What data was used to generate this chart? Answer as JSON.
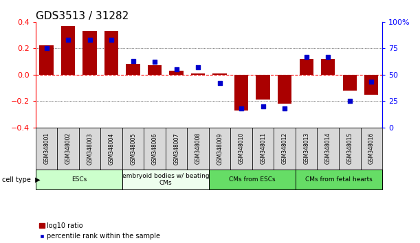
{
  "title": "GDS3513 / 31282",
  "samples": [
    "GSM348001",
    "GSM348002",
    "GSM348003",
    "GSM348004",
    "GSM348005",
    "GSM348006",
    "GSM348007",
    "GSM348008",
    "GSM348009",
    "GSM348010",
    "GSM348011",
    "GSM348012",
    "GSM348013",
    "GSM348014",
    "GSM348015",
    "GSM348016"
  ],
  "log10_ratio": [
    0.22,
    0.37,
    0.33,
    0.33,
    0.08,
    0.07,
    0.03,
    0.01,
    0.01,
    -0.27,
    -0.19,
    -0.22,
    0.12,
    0.12,
    -0.12,
    -0.15
  ],
  "percentile_rank": [
    75,
    83,
    83,
    83,
    63,
    62,
    55,
    57,
    42,
    18,
    20,
    18,
    67,
    67,
    25,
    43
  ],
  "cell_types": [
    {
      "label": "ESCs",
      "start": 0,
      "end": 4,
      "color": "#CCFFCC"
    },
    {
      "label": "embryoid bodies w/ beating\nCMs",
      "start": 4,
      "end": 8,
      "color": "#EEFFEE"
    },
    {
      "label": "CMs from ESCs",
      "start": 8,
      "end": 12,
      "color": "#66DD66"
    },
    {
      "label": "CMs from fetal hearts",
      "start": 12,
      "end": 16,
      "color": "#66DD66"
    }
  ],
  "bar_color": "#AA0000",
  "dot_color": "#0000CC",
  "ylim": [
    -0.4,
    0.4
  ],
  "y2lim": [
    0,
    100
  ],
  "yticks_left": [
    -0.4,
    -0.2,
    0.0,
    0.2,
    0.4
  ],
  "y2ticks": [
    0,
    25,
    50,
    75,
    100
  ],
  "title_fontsize": 11,
  "legend_label1": "log10 ratio",
  "legend_label2": "percentile rank within the sample",
  "cell_type_label": "cell type"
}
